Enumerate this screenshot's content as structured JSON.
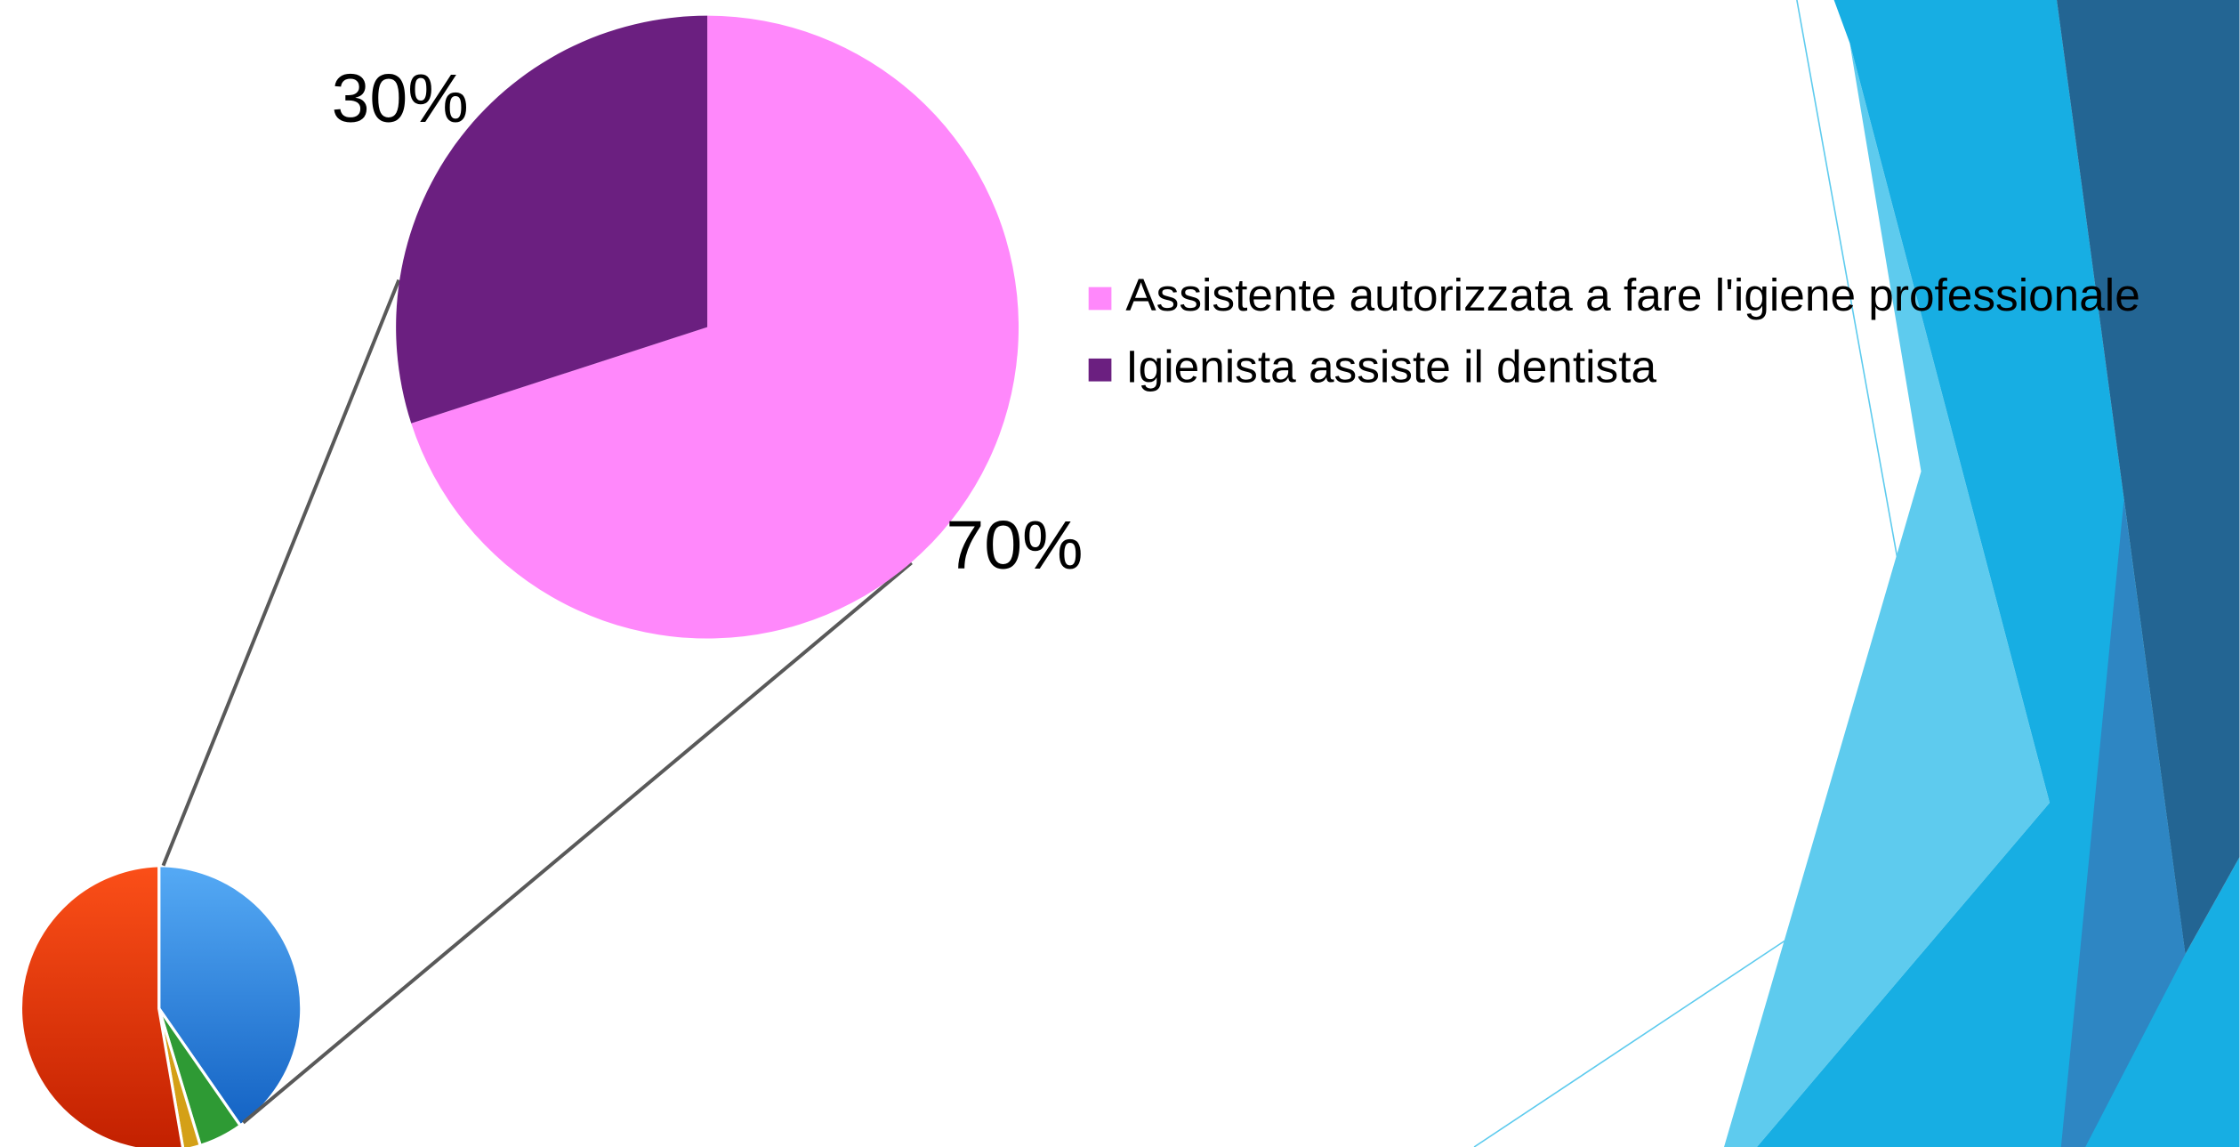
{
  "chart_data": {
    "type": "pie",
    "categories": [
      "Assistente autorizzata a fare l'igiene professionale",
      "Igienista assiste il dentista"
    ],
    "values": [
      70,
      30
    ],
    "value_labels": [
      "70%",
      "30%"
    ],
    "colors": [
      "#ff88fb",
      "#6b1f80"
    ],
    "legend": "right"
  }
}
